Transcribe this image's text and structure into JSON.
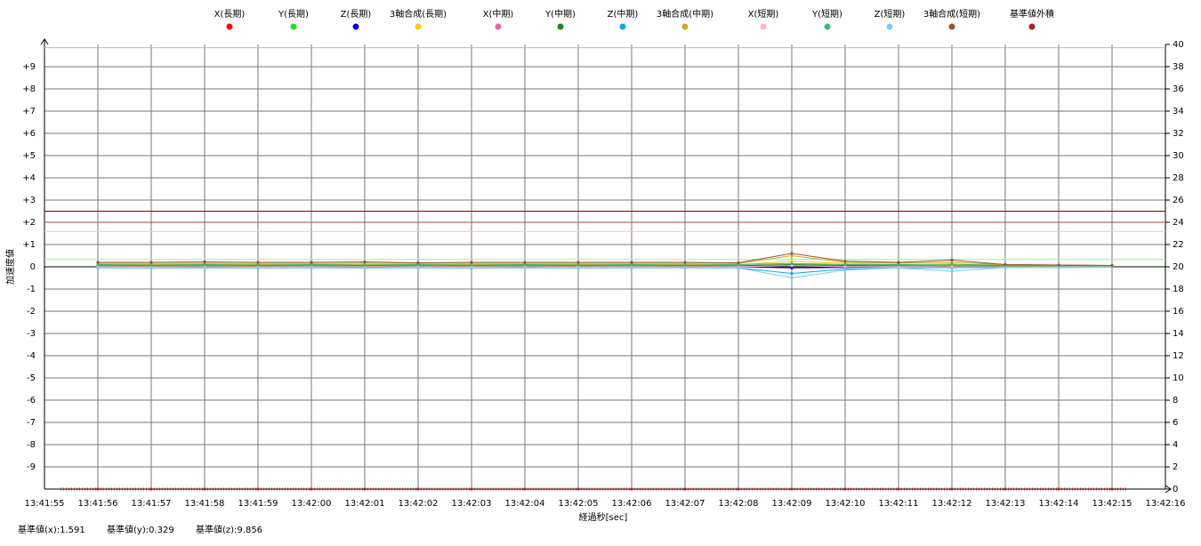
{
  "chart_data": {
    "type": "line",
    "x_label": "経過秒[sec]",
    "y_label": "加速度値",
    "xlim": [
      "13:41:55",
      "13:42:16"
    ],
    "xticks": [
      "13:41:55",
      "13:41:56",
      "13:41:57",
      "13:41:58",
      "13:41:59",
      "13:42:00",
      "13:42:01",
      "13:42:02",
      "13:42:03",
      "13:42:04",
      "13:42:05",
      "13:42:06",
      "13:42:07",
      "13:42:08",
      "13:42:09",
      "13:42:10",
      "13:42:11",
      "13:42:12",
      "13:42:13",
      "13:42:14",
      "13:42:15",
      "13:42:16"
    ],
    "ylim": [
      -10,
      10
    ],
    "yticks": [
      -9,
      -8,
      -7,
      -6,
      -5,
      -4,
      -3,
      -2,
      -1,
      0,
      {
        "value": 1,
        "label": "+1"
      },
      {
        "value": 2,
        "label": "+2"
      },
      {
        "value": 3,
        "label": "+3"
      },
      {
        "value": 4,
        "label": "+4"
      },
      {
        "value": 5,
        "label": "+5"
      },
      {
        "value": 6,
        "label": "+6"
      },
      {
        "value": 7,
        "label": "+7"
      },
      {
        "value": 8,
        "label": "+8"
      },
      {
        "value": 9,
        "label": "+9"
      }
    ],
    "y2lim": [
      0,
      40
    ],
    "y2ticks": [
      0,
      2,
      4,
      6,
      8,
      10,
      12,
      14,
      16,
      18,
      20,
      22,
      24,
      26,
      28,
      30,
      32,
      34,
      36,
      38,
      40
    ],
    "grid": true,
    "x": [
      "13:41:56",
      "13:41:57",
      "13:41:58",
      "13:41:59",
      "13:42:00",
      "13:42:01",
      "13:42:02",
      "13:42:03",
      "13:42:04",
      "13:42:05",
      "13:42:06",
      "13:42:07",
      "13:42:08",
      "13:42:09",
      "13:42:10",
      "13:42:11",
      "13:42:12",
      "13:42:13",
      "13:42:14",
      "13:42:15"
    ],
    "series": [
      {
        "name": "X(長期)",
        "color": "#ff0000",
        "values": [
          0,
          0,
          0.02,
          0,
          0,
          0.02,
          0,
          0,
          0.02,
          0,
          0,
          0,
          0,
          0.05,
          0.02,
          0,
          0,
          0,
          0,
          0
        ]
      },
      {
        "name": "Y(長期)",
        "color": "#22dd22",
        "values": [
          0.02,
          0.02,
          0.03,
          0.02,
          0.02,
          0.03,
          0.02,
          0.02,
          0.03,
          0.02,
          0.02,
          0.02,
          0.02,
          0.08,
          0.04,
          0.03,
          0.02,
          0.02,
          0.02,
          0.02
        ]
      },
      {
        "name": "Z(長期)",
        "color": "#0000cc",
        "values": [
          0,
          0,
          -0.01,
          0,
          0,
          -0.01,
          0,
          0,
          0,
          0,
          0,
          0,
          0,
          -0.05,
          -0.03,
          0,
          0,
          0,
          0,
          0
        ]
      },
      {
        "name": "3軸合成(長期)",
        "color": "#ffcc00",
        "values": [
          0.1,
          0.1,
          0.12,
          0.1,
          0.1,
          0.11,
          0.1,
          0.1,
          0.1,
          0.1,
          0.1,
          0.1,
          0.1,
          0.25,
          0.15,
          0.12,
          0.1,
          0.08,
          0.06,
          0.05
        ]
      },
      {
        "name": "X(中期)",
        "color": "#ee66aa",
        "values": [
          0.02,
          0.02,
          0.02,
          0.02,
          0.02,
          0.02,
          0.02,
          0.02,
          0.02,
          0.02,
          0.02,
          0.02,
          0.02,
          0.05,
          0.03,
          0.02,
          0.02,
          0.02,
          0.02,
          0.02
        ]
      },
      {
        "name": "Y(中期)",
        "color": "#228822",
        "values": [
          0.05,
          0.05,
          0.05,
          0.05,
          0.05,
          0.05,
          0.05,
          0.05,
          0.05,
          0.05,
          0.05,
          0.05,
          0.05,
          0.1,
          0.06,
          0.05,
          0.05,
          0.04,
          0.04,
          0.03
        ]
      },
      {
        "name": "Z(中期)",
        "color": "#00aaee",
        "values": [
          -0.05,
          -0.05,
          -0.04,
          -0.05,
          -0.05,
          -0.04,
          -0.05,
          -0.05,
          -0.04,
          -0.05,
          -0.05,
          -0.04,
          -0.05,
          -0.3,
          -0.1,
          -0.05,
          -0.04,
          -0.03,
          -0.03,
          -0.02
        ]
      },
      {
        "name": "3軸合成(中期)",
        "color": "#ccaa22",
        "values": [
          0.15,
          0.15,
          0.16,
          0.15,
          0.15,
          0.16,
          0.15,
          0.15,
          0.15,
          0.15,
          0.15,
          0.15,
          0.15,
          0.5,
          0.2,
          0.18,
          0.2,
          0.1,
          0.08,
          0.06
        ]
      },
      {
        "name": "X(短期)",
        "color": "#ffb6c1",
        "values": [
          0,
          0,
          0,
          0,
          0,
          0,
          0,
          0,
          0,
          0,
          0,
          0,
          0,
          0.05,
          0,
          0,
          0,
          0,
          0,
          0
        ]
      },
      {
        "name": "Y(短期)",
        "color": "#33bb77",
        "values": [
          0.1,
          0.08,
          0.1,
          0.08,
          0.1,
          0.08,
          0.1,
          0.08,
          0.1,
          0.08,
          0.1,
          0.08,
          0.1,
          0.15,
          0.1,
          0.1,
          0.12,
          0.06,
          0.05,
          0.04
        ]
      },
      {
        "name": "Z(短期)",
        "color": "#77ccee",
        "values": [
          -0.05,
          -0.05,
          -0.06,
          -0.05,
          -0.05,
          -0.06,
          -0.05,
          -0.05,
          -0.06,
          -0.05,
          -0.05,
          -0.05,
          -0.05,
          -0.5,
          -0.15,
          -0.05,
          -0.2,
          -0.03,
          -0.03,
          -0.02
        ]
      },
      {
        "name": "3軸合成(短期)",
        "color": "#995533",
        "values": [
          0.2,
          0.2,
          0.22,
          0.2,
          0.2,
          0.22,
          0.18,
          0.2,
          0.2,
          0.2,
          0.2,
          0.2,
          0.18,
          0.6,
          0.25,
          0.2,
          0.3,
          0.1,
          0.08,
          0.06
        ]
      },
      {
        "name": "基準値外積",
        "color": "#aa2222",
        "axis": "y2",
        "values": [
          0,
          0,
          0,
          0,
          0,
          0,
          0,
          0,
          0,
          0,
          0,
          0,
          0,
          0,
          0,
          0,
          0,
          0,
          0,
          0
        ]
      }
    ],
    "reference_lines": [
      {
        "value": 9.856,
        "color": "#88ccee"
      },
      {
        "value": 2.5,
        "color": "#880000"
      },
      {
        "value": 2,
        "color": "#aa4444"
      },
      {
        "value": 1.591,
        "color": "#ffbbcc"
      },
      {
        "value": 0.329,
        "color": "#99ee99"
      }
    ],
    "footer": [
      "基準値(x):1.591",
      "基準値(y):0.329",
      "基準値(z):9.856"
    ]
  }
}
